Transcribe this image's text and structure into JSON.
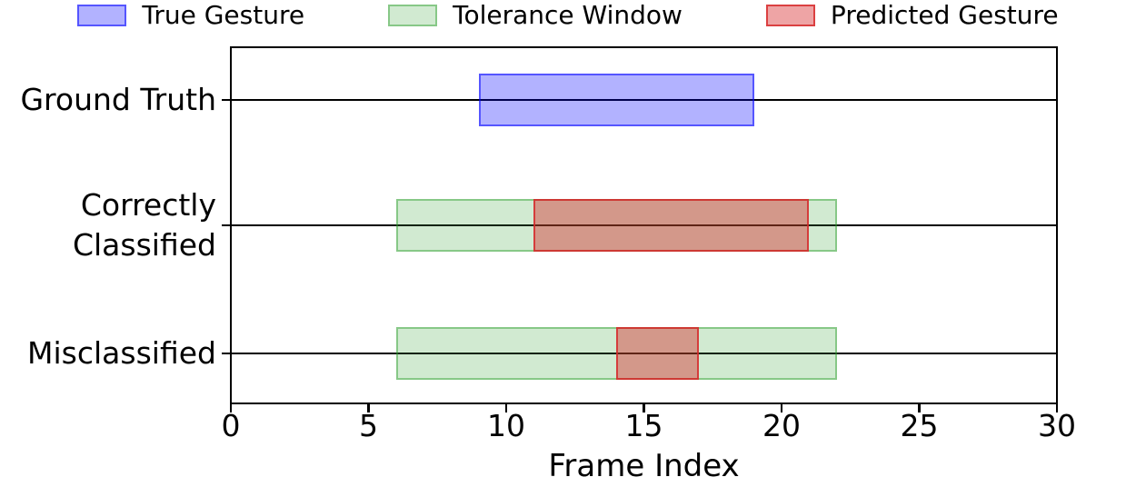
{
  "chart_data": {
    "type": "bar",
    "subtype": "horizontal-interval-timeline",
    "title": "",
    "xlabel": "Frame Index",
    "ylabel": "",
    "xlim": [
      0,
      30
    ],
    "x_ticks": [
      0,
      5,
      10,
      15,
      20,
      25,
      30
    ],
    "grid": false,
    "legend_position": "top-center",
    "legend": [
      {
        "series": "True Gesture"
      },
      {
        "series": "Tolerance Window"
      },
      {
        "series": "Predicted Gesture"
      }
    ],
    "series_styles": {
      "True Gesture": {
        "fill": "rgba(0,0,255,0.30)",
        "border": "rgba(0,0,255,0.52)"
      },
      "Tolerance Window": {
        "fill": "rgba(44,160,44,0.22)",
        "border": "rgba(44,160,44,0.45)"
      },
      "Predicted Gesture": {
        "fill": "rgba(214,39,40,0.42)",
        "border": "rgba(214,39,40,0.80)"
      }
    },
    "rows": [
      {
        "label": "Ground Truth",
        "label_lines": [
          "Ground Truth"
        ],
        "bars": [
          {
            "series": "True Gesture",
            "start": 9,
            "end": 19
          }
        ]
      },
      {
        "label": "Correctly Classified",
        "label_lines": [
          "Correctly",
          "Classified"
        ],
        "bars": [
          {
            "series": "Tolerance Window",
            "start": 6,
            "end": 22
          },
          {
            "series": "Predicted Gesture",
            "start": 11,
            "end": 21
          }
        ]
      },
      {
        "label": "Misclassified",
        "label_lines": [
          "Misclassified"
        ],
        "bars": [
          {
            "series": "Tolerance Window",
            "start": 6,
            "end": 22
          },
          {
            "series": "Predicted Gesture",
            "start": 14,
            "end": 17
          }
        ]
      }
    ],
    "colors": {
      "axis": "#000000",
      "background": "#ffffff"
    }
  }
}
